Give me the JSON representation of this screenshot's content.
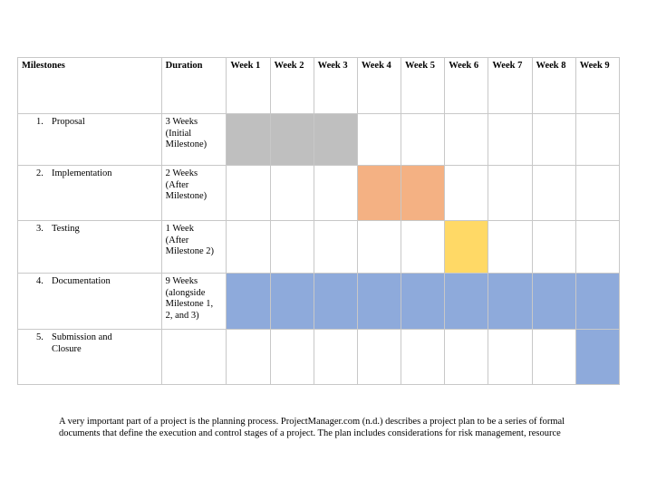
{
  "table": {
    "headers": {
      "milestones": "Milestones",
      "duration": "Duration",
      "weeks": [
        "Week 1",
        "Week 2",
        "Week 3",
        "Week 4",
        "Week 5",
        "Week 6",
        "Week 7",
        "Week 8",
        "Week 9"
      ]
    },
    "rows": [
      {
        "num": "1.",
        "name": "Proposal",
        "duration": [
          "3 Weeks",
          "(Initial",
          "Milestone)"
        ],
        "weeks_active": [
          1,
          2,
          3
        ],
        "color": "#bfbfbf"
      },
      {
        "num": "2.",
        "name": "Implementation",
        "duration": [
          "2 Weeks",
          "(After",
          "Milestone)"
        ],
        "weeks_active": [
          4,
          5
        ],
        "color": "#f4b183"
      },
      {
        "num": "3.",
        "name": "Testing",
        "duration": [
          "1 Week",
          "(After",
          "Milestone 2)"
        ],
        "weeks_active": [
          6
        ],
        "color": "#ffd966"
      },
      {
        "num": "4.",
        "name": "Documentation",
        "duration": [
          "9 Weeks",
          "(alongside",
          "Milestone 1,",
          "2, and 3)"
        ],
        "weeks_active": [
          1,
          2,
          3,
          4,
          5,
          6,
          7,
          8,
          9
        ],
        "color": "#8eaadb"
      },
      {
        "num": "5.",
        "name": [
          "Submission and",
          "Closure"
        ],
        "duration": [],
        "weeks_active": [
          9
        ],
        "color": "#8eaadb"
      }
    ]
  },
  "paragraph": {
    "line1": "A very important part of a project is the planning process. ProjectManager.com (n.d.) describes a project plan to be a series of formal",
    "line2": "documents that define the execution and control stages of a project. The plan includes considerations for risk management, resource"
  }
}
